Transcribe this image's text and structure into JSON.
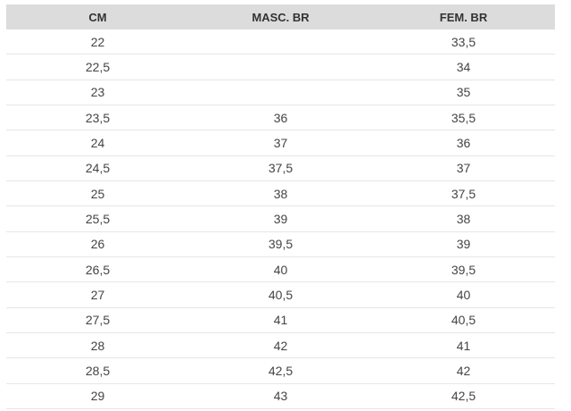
{
  "table": {
    "header": [
      "CM",
      "MASC. BR",
      "FEM. BR"
    ],
    "rows": [
      [
        "22",
        null,
        "33,5"
      ],
      [
        "22,5",
        null,
        "34"
      ],
      [
        "23",
        null,
        "35"
      ],
      [
        "23,5",
        "36",
        "35,5"
      ],
      [
        "24",
        "37",
        "36"
      ],
      [
        "24,5",
        "37,5",
        "37"
      ],
      [
        "25",
        "38",
        "37,5"
      ],
      [
        "25,5",
        "39",
        "38"
      ],
      [
        "26",
        "39,5",
        "39"
      ],
      [
        "26,5",
        "40",
        "39,5"
      ],
      [
        "27",
        "40,5",
        "40"
      ],
      [
        "27,5",
        "41",
        "40,5"
      ],
      [
        "28",
        "42",
        "41"
      ],
      [
        "28,5",
        "42,5",
        "42"
      ],
      [
        "29",
        "43",
        "42,5"
      ]
    ]
  }
}
